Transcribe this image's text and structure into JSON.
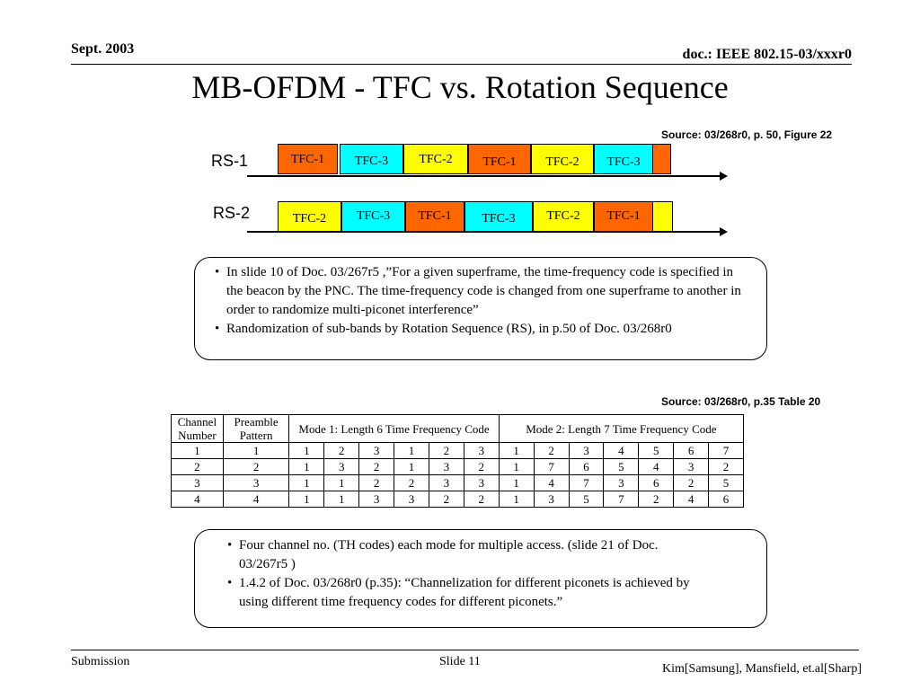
{
  "header": {
    "date": "Sept. 2003",
    "doc_id": "doc.: IEEE 802.15-03/xxxr0"
  },
  "title": "MB-OFDM - TFC vs. Rotation Sequence",
  "figure": {
    "source": "Source: 03/268r0, p. 50, Figure 22",
    "sequences": [
      {
        "label": "RS-1",
        "codes": [
          "TFC-1",
          "TFC-3",
          "TFC-2",
          "TFC-1",
          "TFC-2",
          "TFC-3",
          ""
        ]
      },
      {
        "label": "RS-2",
        "codes": [
          "TFC-2",
          "TFC-3",
          "TFC-1",
          "TFC-3",
          "TFC-2",
          "TFC-1",
          ""
        ]
      }
    ],
    "colors": {
      "TFC-1": "#ff6600",
      "TFC-2": "#ffff00",
      "TFC-3": "#00ffff"
    },
    "tail_colors": [
      "#ff6600",
      "#ffff00"
    ]
  },
  "callout1": {
    "bullets": [
      "In slide 10 of Doc. 03/267r5 ,”For a given superframe, the time-frequency code is specified in the beacon by the PNC. The time-frequency code is changed from one superframe to another in order to randomize multi-piconet interference”",
      "Randomization of sub-bands by Rotation Sequence (RS), in p.50 of Doc. 03/268r0"
    ]
  },
  "table": {
    "source": "Source: 03/268r0, p.35 Table 20",
    "headers": {
      "channel": "Channel Number",
      "preamble": "Preamble Pattern",
      "mode1": "Mode 1: Length 6 Time Frequency Code",
      "mode2": "Mode 2: Length 7 Time Frequency Code"
    },
    "rows": [
      {
        "channel": "1",
        "preamble": "1",
        "mode1": [
          "1",
          "2",
          "3",
          "1",
          "2",
          "3"
        ],
        "mode2": [
          "1",
          "2",
          "3",
          "4",
          "5",
          "6",
          "7"
        ]
      },
      {
        "channel": "2",
        "preamble": "2",
        "mode1": [
          "1",
          "3",
          "2",
          "1",
          "3",
          "2"
        ],
        "mode2": [
          "1",
          "7",
          "6",
          "5",
          "4",
          "3",
          "2"
        ]
      },
      {
        "channel": "3",
        "preamble": "3",
        "mode1": [
          "1",
          "1",
          "2",
          "2",
          "3",
          "3"
        ],
        "mode2": [
          "1",
          "4",
          "7",
          "3",
          "6",
          "2",
          "5"
        ]
      },
      {
        "channel": "4",
        "preamble": "4",
        "mode1": [
          "1",
          "1",
          "3",
          "3",
          "2",
          "2"
        ],
        "mode2": [
          "1",
          "3",
          "5",
          "7",
          "2",
          "4",
          "6"
        ]
      }
    ]
  },
  "callout2": {
    "bullets": [
      "Four channel no. (TH codes) each mode for multiple access. (slide 21 of Doc. 03/267r5 )",
      "1.4.2 of Doc. 03/268r0 (p.35): “Channelization for different piconets is achieved by using different time frequency codes for different piconets.”"
    ]
  },
  "footer": {
    "left": "Submission",
    "center": "Slide 11",
    "right": "Kim[Samsung], Mansfield, et.al[Sharp]"
  }
}
